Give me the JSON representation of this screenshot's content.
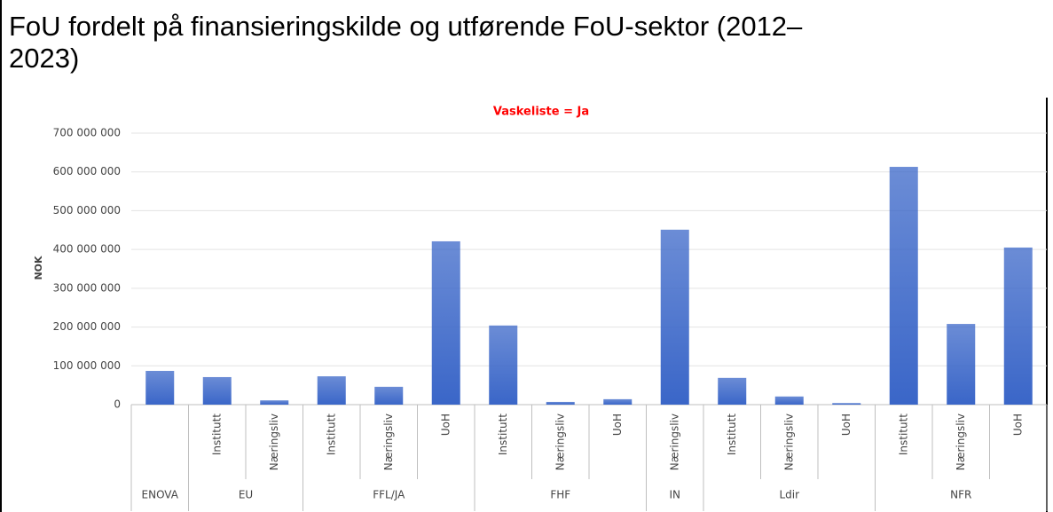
{
  "chart_data": {
    "type": "grouped-category-bar",
    "title": "FoU fordelt på finansieringskilde og utførende FoU-sektor (2012–2023)",
    "subtitle": "Vaskeliste = Ja",
    "y_label": "NOK",
    "color": "#3a66c8",
    "grid": true,
    "ylim": [
      0,
      700000000
    ],
    "yticks": [
      0,
      {
        "value": 100000000,
        "label": "100 000 000"
      },
      {
        "value": 200000000,
        "label": "200 000 000"
      },
      {
        "value": 300000000,
        "label": "300 000 000"
      },
      {
        "value": 400000000,
        "label": "400 000 000"
      },
      {
        "value": 500000000,
        "label": "500 000 000"
      },
      {
        "value": 600000000,
        "label": "600 000 000"
      },
      {
        "value": 700000000,
        "label": "700 000 000"
      }
    ],
    "groups": [
      {
        "name": "ENOVA",
        "categories": [
          null
        ],
        "values": [
          87000000
        ]
      },
      {
        "name": "EU",
        "categories": [
          "Institutt",
          "Næringsliv"
        ],
        "values": [
          71000000,
          11000000
        ]
      },
      {
        "name": "FFL/JA",
        "categories": [
          "Institutt",
          "Næringsliv",
          "UoH"
        ],
        "values": [
          73000000,
          46000000,
          421000000
        ]
      },
      {
        "name": "FHF",
        "categories": [
          "Institutt",
          "Næringsliv",
          "UoH"
        ],
        "values": [
          204000000,
          7000000,
          14000000
        ]
      },
      {
        "name": "IN",
        "categories": [
          "Næringsliv"
        ],
        "values": [
          451000000
        ]
      },
      {
        "name": "Ldir",
        "categories": [
          "Institutt",
          "Næringsliv",
          "UoH"
        ],
        "values": [
          69000000,
          21000000,
          4000000
        ]
      },
      {
        "name": "NFR",
        "categories": [
          "Institutt",
          "Næringsliv",
          "UoH"
        ],
        "values": [
          613000000,
          208000000,
          405000000
        ]
      }
    ]
  }
}
